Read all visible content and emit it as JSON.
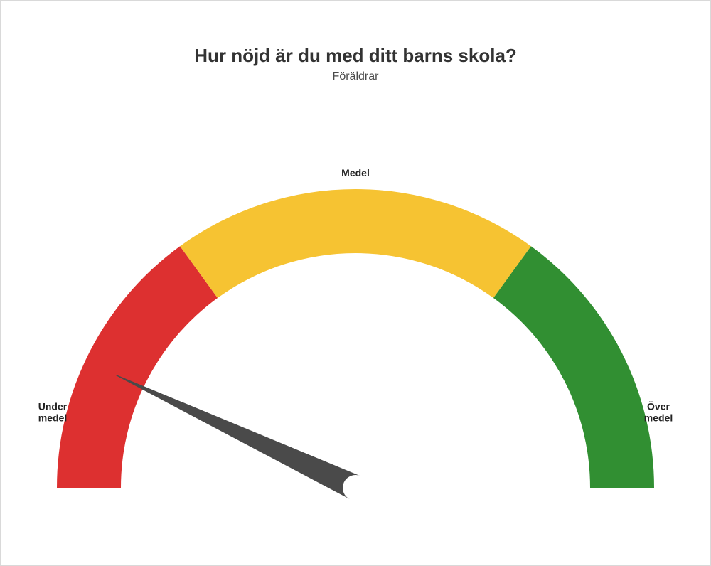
{
  "title": "Hur nöjd är du med ditt barns skola?",
  "subtitle": "Föräldrar",
  "gauge": {
    "type": "gauge",
    "min": 0,
    "max": 100,
    "value": 14,
    "segments": [
      {
        "from": 0,
        "to": 30,
        "color": "#dd3030",
        "label": "Under\nmedel",
        "label_pos": "left"
      },
      {
        "from": 30,
        "to": 70,
        "color": "#f6c332",
        "label": "Medel",
        "label_pos": "top"
      },
      {
        "from": 70,
        "to": 100,
        "color": "#318f32",
        "label": "Över\nmedel",
        "label_pos": "right"
      }
    ],
    "outer_radius": 420,
    "inner_radius": 330,
    "needle_color": "#4a4a4a",
    "needle_length": 372,
    "needle_base_radius": 18,
    "background_color": "#ffffff",
    "title_fontsize": 26,
    "subtitle_fontsize": 16,
    "label_fontsize": 14,
    "label_fontweight": 700,
    "border_color": "#d9d9d9"
  }
}
